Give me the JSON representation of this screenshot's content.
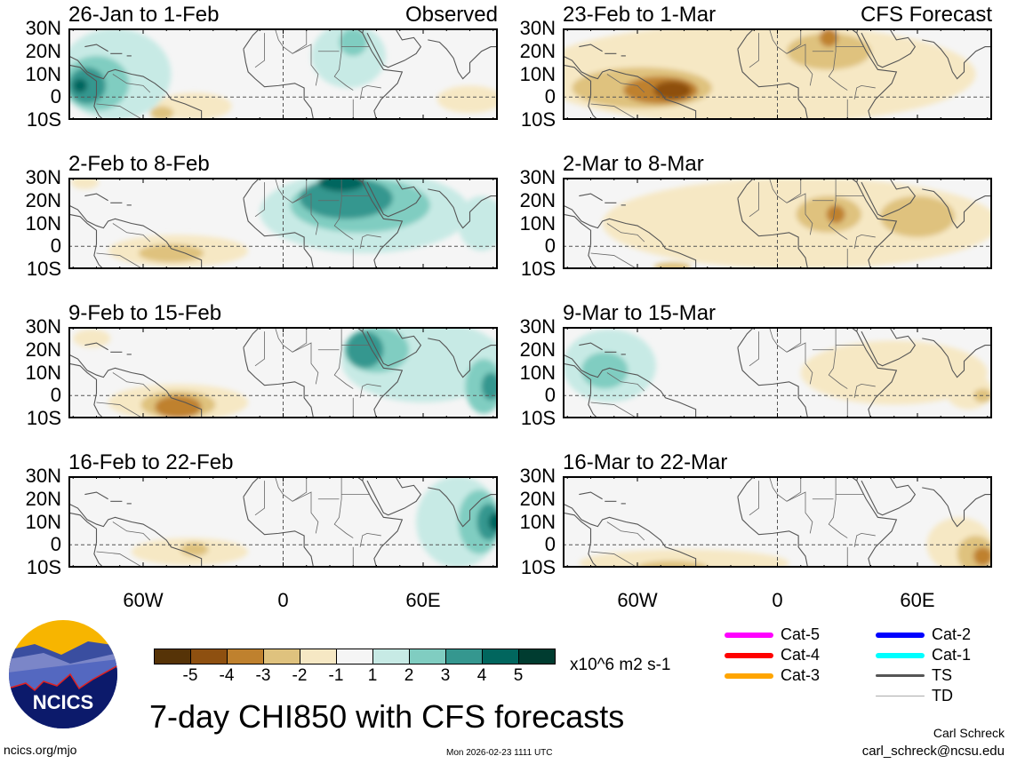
{
  "panels": [
    {
      "title": "26-Jan to 1-Feb",
      "tag": "Observed",
      "blobs": [
        {
          "lon": -72,
          "lat": 10,
          "rx": 24,
          "ry": 20,
          "v": 1
        },
        {
          "lon": 28,
          "lat": 18,
          "rx": 16,
          "ry": 14,
          "v": 1
        },
        {
          "lon": 30,
          "lat": 24,
          "rx": 6,
          "ry": 6,
          "v": 2
        },
        {
          "lon": -80,
          "lat": 6,
          "rx": 14,
          "ry": 12,
          "v": 2
        },
        {
          "lon": -84,
          "lat": 5,
          "rx": 8,
          "ry": 8,
          "v": 3
        },
        {
          "lon": -87,
          "lat": 5,
          "rx": 3,
          "ry": 3,
          "v": 4
        },
        {
          "lon": -38,
          "lat": -4,
          "rx": 16,
          "ry": 6,
          "v": -1
        },
        {
          "lon": -52,
          "lat": -7,
          "rx": 5,
          "ry": 3,
          "v": -2
        },
        {
          "lon": 80,
          "lat": -1,
          "rx": 14,
          "ry": 6,
          "v": -1
        }
      ]
    },
    {
      "title": "23-Feb to 1-Mar",
      "tag": "CFS Forecast",
      "blobs": [
        {
          "lon": -10,
          "lat": 10,
          "rx": 95,
          "ry": 22,
          "v": -1
        },
        {
          "lon": -58,
          "lat": 4,
          "rx": 30,
          "ry": 9,
          "v": -2
        },
        {
          "lon": -50,
          "lat": 3,
          "rx": 16,
          "ry": 6,
          "v": -3
        },
        {
          "lon": -45,
          "lat": 3,
          "rx": 8,
          "ry": 4,
          "v": -4
        },
        {
          "lon": 22,
          "lat": 20,
          "rx": 18,
          "ry": 8,
          "v": -2
        },
        {
          "lon": 22,
          "lat": 26,
          "rx": 4,
          "ry": 4,
          "v": -3
        }
      ]
    },
    {
      "title": "2-Feb to 8-Feb",
      "tag": "",
      "blobs": [
        {
          "lon": 35,
          "lat": 15,
          "rx": 45,
          "ry": 18,
          "v": 1
        },
        {
          "lon": 85,
          "lat": 10,
          "rx": 10,
          "ry": 12,
          "v": 1
        },
        {
          "lon": 33,
          "lat": 18,
          "rx": 30,
          "ry": 12,
          "v": 2
        },
        {
          "lon": 27,
          "lat": 21,
          "rx": 20,
          "ry": 9,
          "v": 3
        },
        {
          "lon": 25,
          "lat": 28,
          "rx": 10,
          "ry": 4,
          "v": 4
        },
        {
          "lon": -45,
          "lat": -2,
          "rx": 30,
          "ry": 7,
          "v": -1
        },
        {
          "lon": -48,
          "lat": -3,
          "rx": 14,
          "ry": 4,
          "v": -2
        },
        {
          "lon": -85,
          "lat": 28,
          "rx": 6,
          "ry": 3,
          "v": -1
        }
      ]
    },
    {
      "title": "2-Mar to 8-Mar",
      "tag": "",
      "blobs": [
        {
          "lon": 10,
          "lat": 10,
          "rx": 85,
          "ry": 20,
          "v": -1
        },
        {
          "lon": 22,
          "lat": 14,
          "rx": 14,
          "ry": 8,
          "v": -2
        },
        {
          "lon": 60,
          "lat": 13,
          "rx": 16,
          "ry": 9,
          "v": -2
        },
        {
          "lon": 25,
          "lat": 14,
          "rx": 4,
          "ry": 4,
          "v": -3
        },
        {
          "lon": -45,
          "lat": -9,
          "rx": 8,
          "ry": 2,
          "v": -2
        }
      ]
    },
    {
      "title": "9-Feb to 15-Feb",
      "tag": "",
      "blobs": [
        {
          "lon": 60,
          "lat": 15,
          "rx": 35,
          "ry": 18,
          "v": 1
        },
        {
          "lon": 40,
          "lat": 20,
          "rx": 14,
          "ry": 10,
          "v": 2
        },
        {
          "lon": 86,
          "lat": 4,
          "rx": 8,
          "ry": 12,
          "v": 2
        },
        {
          "lon": 35,
          "lat": 20,
          "rx": 8,
          "ry": 8,
          "v": 3
        },
        {
          "lon": 89,
          "lat": 4,
          "rx": 4,
          "ry": 6,
          "v": 3
        },
        {
          "lon": -45,
          "lat": -3,
          "rx": 30,
          "ry": 8,
          "v": -1
        },
        {
          "lon": -45,
          "lat": -4,
          "rx": 16,
          "ry": 6,
          "v": -2
        },
        {
          "lon": -45,
          "lat": -5,
          "rx": 10,
          "ry": 5,
          "v": -3
        },
        {
          "lon": -82,
          "lat": 25,
          "rx": 8,
          "ry": 4,
          "v": -1
        }
      ]
    },
    {
      "title": "9-Mar to 15-Mar",
      "tag": "",
      "blobs": [
        {
          "lon": -72,
          "lat": 13,
          "rx": 20,
          "ry": 16,
          "v": 1
        },
        {
          "lon": -74,
          "lat": 11,
          "rx": 10,
          "ry": 8,
          "v": 2
        },
        {
          "lon": 50,
          "lat": 10,
          "rx": 40,
          "ry": 14,
          "v": -1
        },
        {
          "lon": 82,
          "lat": 2,
          "rx": 10,
          "ry": 8,
          "v": -1
        },
        {
          "lon": 88,
          "lat": 0,
          "rx": 4,
          "ry": 3,
          "v": -2
        }
      ]
    },
    {
      "title": "16-Feb to 22-Feb",
      "tag": "",
      "blobs": [
        {
          "lon": 75,
          "lat": 10,
          "rx": 18,
          "ry": 20,
          "v": 1
        },
        {
          "lon": 84,
          "lat": 10,
          "rx": 9,
          "ry": 14,
          "v": 2
        },
        {
          "lon": 88,
          "lat": 10,
          "rx": 5,
          "ry": 8,
          "v": 3
        },
        {
          "lon": 91,
          "lat": 10,
          "rx": 3,
          "ry": 4,
          "v": 4
        },
        {
          "lon": -40,
          "lat": -3,
          "rx": 25,
          "ry": 6,
          "v": -1
        },
        {
          "lon": -38,
          "lat": -2,
          "rx": 6,
          "ry": 3,
          "v": -2
        }
      ]
    },
    {
      "title": "16-Mar to 22-Mar",
      "tag": "",
      "blobs": [
        {
          "lon": -40,
          "lat": -8,
          "rx": 45,
          "ry": 6,
          "v": -1
        },
        {
          "lon": 78,
          "lat": 0,
          "rx": 14,
          "ry": 12,
          "v": -1
        },
        {
          "lon": -45,
          "lat": -10,
          "rx": 15,
          "ry": 3,
          "v": -2
        },
        {
          "lon": 85,
          "lat": -4,
          "rx": 8,
          "ry": 8,
          "v": -2
        },
        {
          "lon": 88,
          "lat": -5,
          "rx": 4,
          "ry": 4,
          "v": -3
        }
      ]
    }
  ],
  "y_axis": [
    "30N",
    "20N",
    "10N",
    "0",
    "10S"
  ],
  "x_axis": [
    "60W",
    "0",
    "60E"
  ],
  "colorbar": {
    "colors": [
      "#563307",
      "#8e5010",
      "#bf812e",
      "#dfc27e",
      "#f6e8c4",
      "#f5f5f5",
      "#c7eae5",
      "#80cdc1",
      "#35978f",
      "#01665e",
      "#003c30"
    ],
    "labels": [
      "-5",
      "-4",
      "-3",
      "-2",
      "-1",
      "1",
      "2",
      "3",
      "4",
      "5"
    ],
    "units": "x10^6 m2 s-1"
  },
  "legend": [
    {
      "label": "Cat-5",
      "color": "#ff00ff"
    },
    {
      "label": "Cat-4",
      "color": "#ff0000"
    },
    {
      "label": "Cat-3",
      "color": "#ffa500"
    },
    {
      "label": "Cat-2",
      "color": "#0000ff"
    },
    {
      "label": "Cat-1",
      "color": "#00ffff"
    },
    {
      "label": "TS",
      "color": "#555555"
    },
    {
      "label": "TD",
      "color": "#aaaaaa"
    }
  ],
  "logo_text": "NCICS",
  "main_title": "7-day CHI850 with CFS forecasts",
  "footer": {
    "url": "ncics.org/mjo",
    "timestamp": "Mon 2026-02-23 1111 UTC",
    "author": "Carl Schreck",
    "email": "carl_schreck@ncsu.edu"
  }
}
